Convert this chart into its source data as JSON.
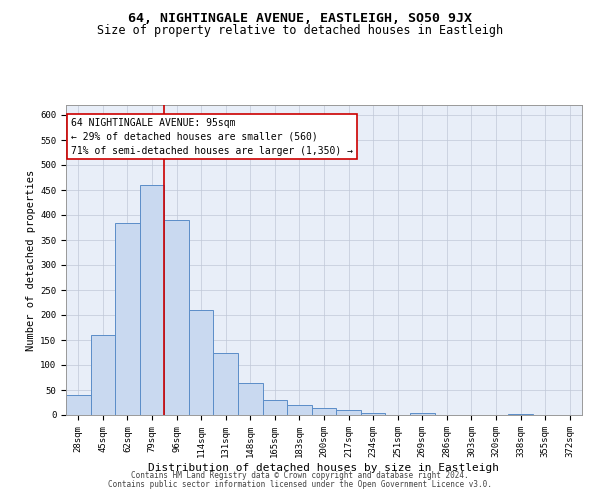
{
  "title": "64, NIGHTINGALE AVENUE, EASTLEIGH, SO50 9JX",
  "subtitle": "Size of property relative to detached houses in Eastleigh",
  "xlabel": "Distribution of detached houses by size in Eastleigh",
  "ylabel": "Number of detached properties",
  "bin_labels": [
    "28sqm",
    "45sqm",
    "62sqm",
    "79sqm",
    "96sqm",
    "114sqm",
    "131sqm",
    "148sqm",
    "165sqm",
    "183sqm",
    "200sqm",
    "217sqm",
    "234sqm",
    "251sqm",
    "269sqm",
    "286sqm",
    "303sqm",
    "320sqm",
    "338sqm",
    "355sqm",
    "372sqm"
  ],
  "bar_heights": [
    40,
    160,
    385,
    460,
    390,
    210,
    125,
    65,
    30,
    20,
    15,
    10,
    5,
    0,
    5,
    0,
    0,
    0,
    3,
    0,
    0
  ],
  "bar_color": "#c9d9f0",
  "bar_edge_color": "#5b8dc8",
  "red_line_color": "#cc0000",
  "red_line_x": 3.5,
  "annotation_text": "64 NIGHTINGALE AVENUE: 95sqm\n← 29% of detached houses are smaller (560)\n71% of semi-detached houses are larger (1,350) →",
  "annotation_box_edge": "#cc0000",
  "ylim_max": 620,
  "yticks": [
    0,
    50,
    100,
    150,
    200,
    250,
    300,
    350,
    400,
    450,
    500,
    550,
    600
  ],
  "grid_color": "#c0c8d8",
  "bg_color": "#e8eef8",
  "footer1": "Contains HM Land Registry data © Crown copyright and database right 2024.",
  "footer2": "Contains public sector information licensed under the Open Government Licence v3.0.",
  "title_fontsize": 9.5,
  "subtitle_fontsize": 8.5,
  "tick_fontsize": 6.5,
  "ylabel_fontsize": 7.5,
  "xlabel_fontsize": 8,
  "annotation_fontsize": 7,
  "footer_fontsize": 5.5
}
